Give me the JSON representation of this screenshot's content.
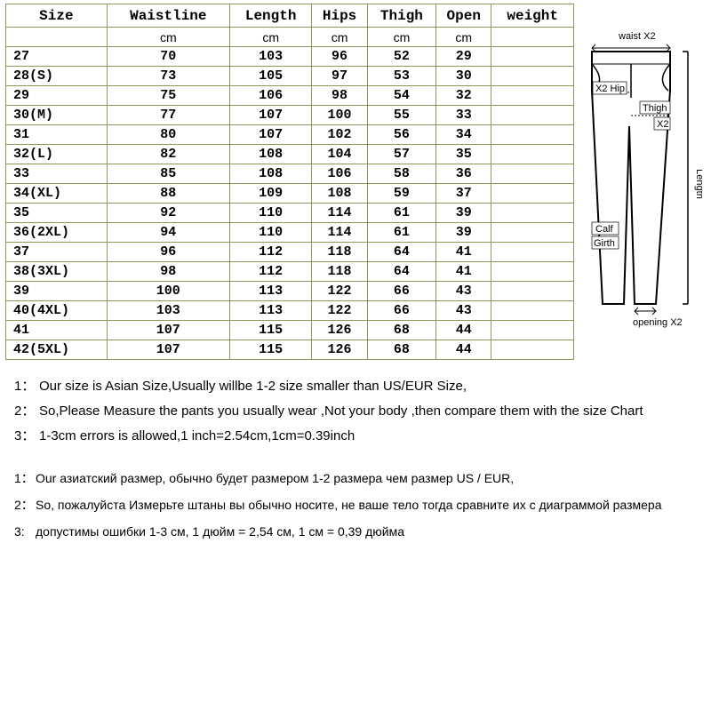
{
  "table": {
    "border_color": "#8a9a5b",
    "columns": [
      "Size",
      "Waistline",
      "Length",
      "Hips",
      "Thigh",
      "Open",
      "weight"
    ],
    "units": [
      "",
      "cm",
      "cm",
      "cm",
      "cm",
      "cm",
      ""
    ],
    "rows": [
      [
        "27",
        "70",
        "103",
        "96",
        "52",
        "29",
        ""
      ],
      [
        "28(S)",
        "73",
        "105",
        "97",
        "53",
        "30",
        ""
      ],
      [
        "29",
        "75",
        "106",
        "98",
        "54",
        "32",
        ""
      ],
      [
        "30(M)",
        "77",
        "107",
        "100",
        "55",
        "33",
        ""
      ],
      [
        "31",
        "80",
        "107",
        "102",
        "56",
        "34",
        ""
      ],
      [
        "32(L)",
        "82",
        "108",
        "104",
        "57",
        "35",
        ""
      ],
      [
        "33",
        "85",
        "108",
        "106",
        "58",
        "36",
        ""
      ],
      [
        "34(XL)",
        "88",
        "109",
        "108",
        "59",
        "37",
        ""
      ],
      [
        "35",
        "92",
        "110",
        "114",
        "61",
        "39",
        ""
      ],
      [
        "36(2XL)",
        "94",
        "110",
        "114",
        "61",
        "39",
        ""
      ],
      [
        "37",
        "96",
        "112",
        "118",
        "64",
        "41",
        ""
      ],
      [
        "38(3XL)",
        "98",
        "112",
        "118",
        "64",
        "41",
        ""
      ],
      [
        "39",
        "100",
        "113",
        "122",
        "66",
        "43",
        ""
      ],
      [
        "40(4XL)",
        "103",
        "113",
        "122",
        "66",
        "43",
        ""
      ],
      [
        "41",
        "107",
        "115",
        "126",
        "68",
        "44",
        ""
      ],
      [
        "42(5XL)",
        "107",
        "115",
        "126",
        "68",
        "44",
        ""
      ]
    ]
  },
  "diagram": {
    "labels": {
      "waist": "waist X2",
      "hip": "X2 Hip",
      "thigh": "Thigh",
      "thigh_x2": "X2",
      "calf": "Calf",
      "girth": "Girth",
      "length": "Length",
      "opening": "opening X2"
    }
  },
  "notes_en": [
    [
      "1：",
      "Our size is Asian Size,Usually willbe 1-2 size smaller than US/EUR Size,"
    ],
    [
      "2：",
      "So,Please Measure the pants you usually wear ,Not your body ,then compare them with the size Chart"
    ],
    [
      "3：",
      "1-3cm errors is allowed,1 inch=2.54cm,1cm=0.39inch"
    ]
  ],
  "notes_ru": [
    [
      "1：",
      "Our азиатский размер, обычно будет размером 1-2 размера чем размер US / EUR,"
    ],
    [
      "2：",
      "So, пожалуйста Измерьте штаны вы обычно носите, не ваше тело тогда сравните их с диаграммой размера"
    ],
    [
      "3:",
      "допустимы ошибки 1-3 см, 1 дюйм = 2,54 см, 1 см = 0,39 дюйма"
    ]
  ]
}
